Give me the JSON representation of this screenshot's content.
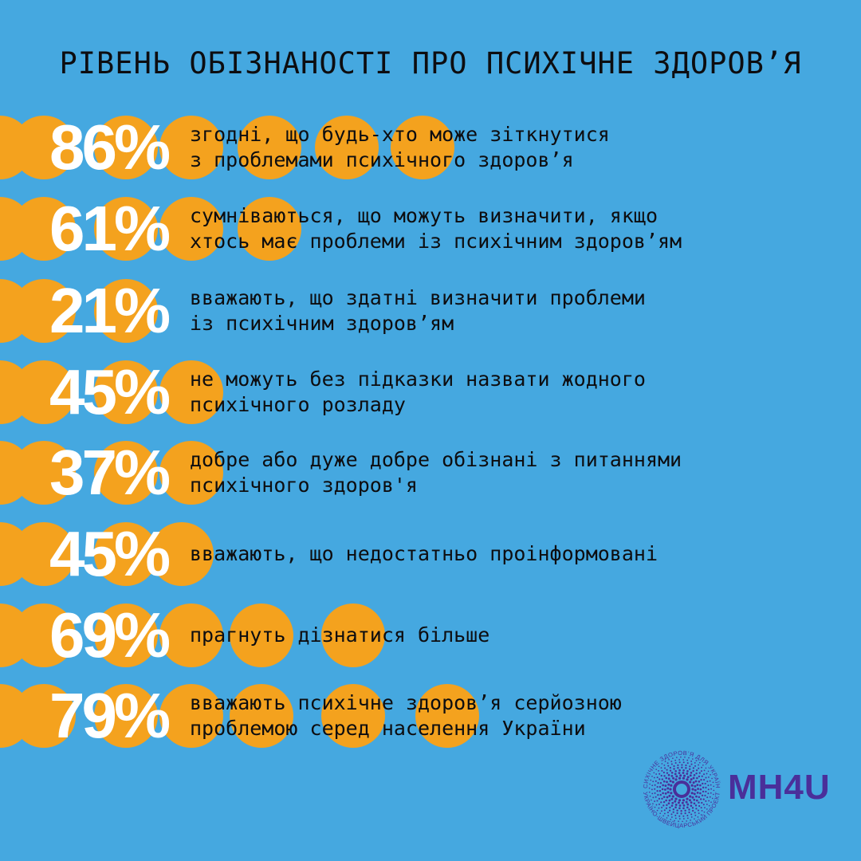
{
  "title": "РІВЕНЬ ОБІЗНАНОСТІ ПРО ПСИХІЧНЕ ЗДОРОВ’Я",
  "colors": {
    "background": "#45a8e0",
    "dots": "#f4a21e",
    "percent_text": "#ffffff",
    "body_text": "#0d0d10",
    "logo": "#4a2f9a"
  },
  "chart_data": {
    "type": "table",
    "title": "РІВЕНЬ ОБІЗНАНОСТІ ПРО ПСИХІЧНЕ ЗДОРОВ’Я",
    "rows": [
      {
        "value": 86,
        "label": "86%",
        "lines": [
          "згодні, що будь-хто може зіткнутися",
          "з проблемами психічного здоров’я"
        ]
      },
      {
        "value": 61,
        "label": "61%",
        "lines": [
          "сумніваються, що можуть визначити, якщо",
          "хтось має проблеми із психічним здоров’ям"
        ]
      },
      {
        "value": 21,
        "label": "21%",
        "lines": [
          "вважають, що здатні визначити проблеми",
          "із психічним здоров’ям"
        ]
      },
      {
        "value": 45,
        "label": "45%",
        "lines": [
          "не можуть без підказки назвати жодного",
          "психічного розладу"
        ]
      },
      {
        "value": 37,
        "label": "37%",
        "lines": [
          "добре або дуже добре обізнані з питаннями",
          "психічного здоров'я"
        ]
      },
      {
        "value": 45,
        "label": "45%",
        "lines": [
          "вважають, що недостатньо проінформовані"
        ]
      },
      {
        "value": 69,
        "label": "69%",
        "lines": [
          "прагнуть дізнатися більше"
        ]
      },
      {
        "value": 79,
        "label": "79%",
        "lines": [
          "вважають психічне здоров’я серйозною",
          "проблемою серед населення України"
        ]
      }
    ]
  },
  "logo": {
    "text": "MH4U",
    "ring_text_top": "ПСИХІЧНЕ ЗДОРОВ’Я ДЛЯ УКРАЇНИ",
    "ring_text_bottom": "УКРАЇНО-ШВЕЙЦАРСЬКИЙ ПРОЕКТ"
  }
}
